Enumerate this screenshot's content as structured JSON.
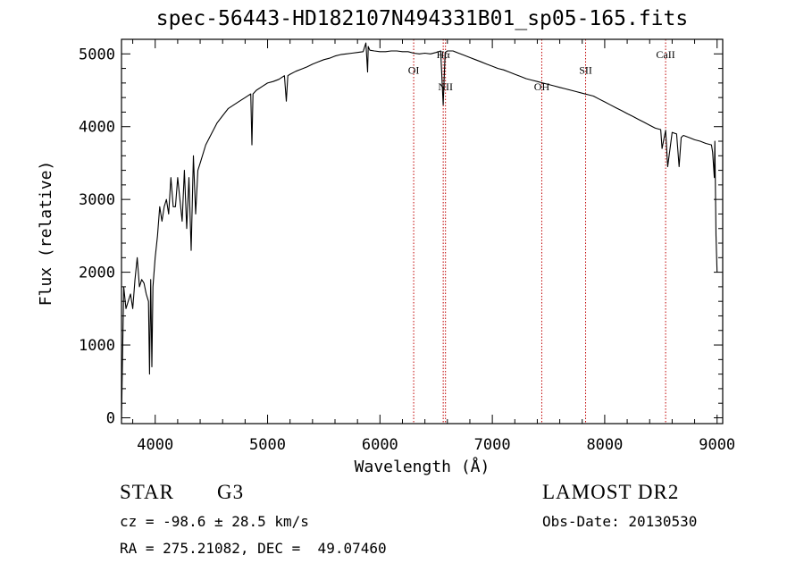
{
  "title": "spec-56443-HD182107N494331B01_sp05-165.fits",
  "chart_data": {
    "type": "line",
    "xlabel": "Wavelength (Å)",
    "ylabel": "Flux (relative)",
    "xlim": [
      3700,
      9050
    ],
    "ylim": [
      -80,
      5200
    ],
    "xticks": [
      4000,
      5000,
      6000,
      7000,
      8000,
      9000
    ],
    "yticks": [
      0,
      1000,
      2000,
      3000,
      4000,
      5000
    ],
    "series": [
      {
        "x": [
          3700,
          3720,
          3740,
          3760,
          3780,
          3800,
          3820,
          3840,
          3860,
          3880,
          3900,
          3920,
          3940,
          3950,
          3960,
          3970,
          3980,
          4000,
          4020,
          4040,
          4060,
          4080,
          4100,
          4120,
          4140,
          4160,
          4180,
          4200,
          4220,
          4240,
          4260,
          4280,
          4300,
          4320,
          4340,
          4360,
          4380,
          4400,
          4450,
          4500,
          4550,
          4600,
          4650,
          4700,
          4750,
          4800,
          4850,
          4861,
          4870,
          4900,
          4950,
          5000,
          5050,
          5100,
          5150,
          5167,
          5180,
          5200,
          5250,
          5300,
          5350,
          5400,
          5450,
          5500,
          5550,
          5600,
          5650,
          5700,
          5750,
          5800,
          5850,
          5875,
          5890,
          5896,
          5910,
          5950,
          6000,
          6050,
          6100,
          6150,
          6200,
          6250,
          6300,
          6350,
          6400,
          6450,
          6500,
          6540,
          6563,
          6580,
          6600,
          6650,
          6700,
          6750,
          6800,
          6850,
          6900,
          6950,
          7000,
          7050,
          7100,
          7150,
          7200,
          7250,
          7300,
          7350,
          7400,
          7450,
          7500,
          7550,
          7600,
          7650,
          7700,
          7750,
          7800,
          7850,
          7900,
          7950,
          8000,
          8050,
          8100,
          8150,
          8200,
          8250,
          8300,
          8350,
          8400,
          8450,
          8498,
          8510,
          8542,
          8560,
          8600,
          8640,
          8662,
          8680,
          8700,
          8750,
          8800,
          8850,
          8900,
          8950,
          8960,
          8975,
          8980,
          8990,
          9000
        ],
        "y": [
          -30,
          1800,
          1500,
          1600,
          1700,
          1500,
          1900,
          2200,
          1800,
          1900,
          1850,
          1700,
          1600,
          600,
          1900,
          700,
          1800,
          2200,
          2500,
          2900,
          2700,
          2900,
          3000,
          2800,
          3300,
          2900,
          2900,
          3300,
          3000,
          2700,
          3400,
          2600,
          3300,
          2300,
          3600,
          2800,
          3400,
          3500,
          3750,
          3900,
          4050,
          4150,
          4250,
          4300,
          4350,
          4400,
          4450,
          3750,
          4450,
          4500,
          4550,
          4600,
          4620,
          4650,
          4700,
          4350,
          4700,
          4720,
          4760,
          4790,
          4820,
          4860,
          4890,
          4920,
          4940,
          4970,
          4990,
          5000,
          5010,
          5020,
          5030,
          5150,
          4750,
          5100,
          5050,
          5040,
          5030,
          5030,
          5040,
          5040,
          5030,
          5030,
          5010,
          5000,
          5010,
          5000,
          5020,
          5040,
          4300,
          5020,
          5040,
          5040,
          5010,
          4980,
          4950,
          4920,
          4890,
          4860,
          4830,
          4800,
          4780,
          4750,
          4720,
          4690,
          4660,
          4640,
          4620,
          4600,
          4580,
          4560,
          4540,
          4520,
          4500,
          4480,
          4460,
          4440,
          4420,
          4380,
          4340,
          4300,
          4260,
          4220,
          4180,
          4140,
          4100,
          4060,
          4020,
          3980,
          3960,
          3700,
          3950,
          3450,
          3920,
          3900,
          3450,
          3850,
          3880,
          3850,
          3820,
          3800,
          3770,
          3750,
          3650,
          3300,
          3800,
          2500,
          2000
        ]
      }
    ],
    "annotations": [
      {
        "label": "OI",
        "x": 6300,
        "label_y": 4730
      },
      {
        "label": "Hα",
        "x": 6563,
        "label_y": 4940
      },
      {
        "label": "NII",
        "x": 6583,
        "label_y": 4500
      },
      {
        "label": "OH",
        "x": 7440,
        "label_y": 4500
      },
      {
        "label": "SII",
        "x": 7830,
        "label_y": 4730
      },
      {
        "label": "CaII",
        "x": 8542,
        "label_y": 4940
      }
    ],
    "line_color": "#000000",
    "marker_line_color": "#c00000"
  },
  "footer": {
    "object_class": "STAR",
    "subclass": "G3",
    "survey": "LAMOST DR2",
    "redshift": "cz = -98.6 ± 28.5 km/s",
    "obs_date": "Obs-Date: 20130530",
    "coords": "RA = 275.21082, DEC =  49.07460"
  }
}
